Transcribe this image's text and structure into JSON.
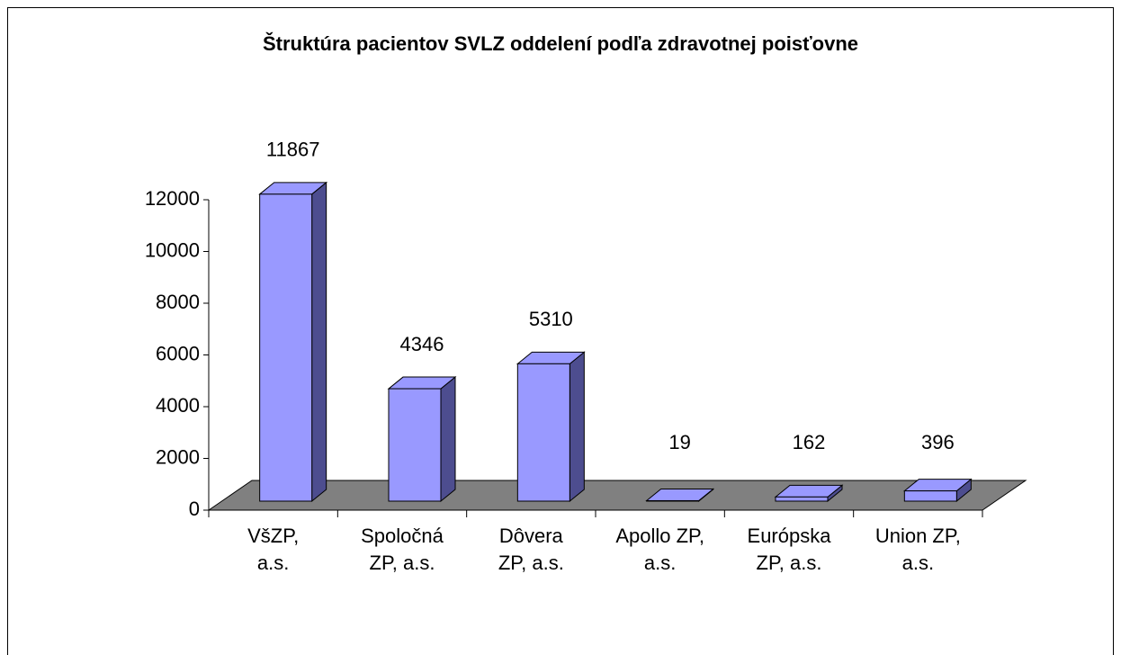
{
  "chart_data": {
    "type": "bar",
    "title": "Štruktúra pacientov SVLZ oddelení podľa zdravotnej poisťovne",
    "categories": [
      "VšZP,\na.s.",
      "Spoločná\nZP, a.s.",
      "Dôvera\nZP, a.s.",
      "Apollo ZP,\na.s.",
      "Európska\nZP, a.s.",
      "Union ZP,\na.s."
    ],
    "values": [
      11867,
      4346,
      5310,
      19,
      162,
      396
    ],
    "color": "#9999ff",
    "ylim": [
      0,
      12000
    ],
    "yticks": [
      0,
      2000,
      4000,
      6000,
      8000,
      10000,
      12000
    ]
  }
}
